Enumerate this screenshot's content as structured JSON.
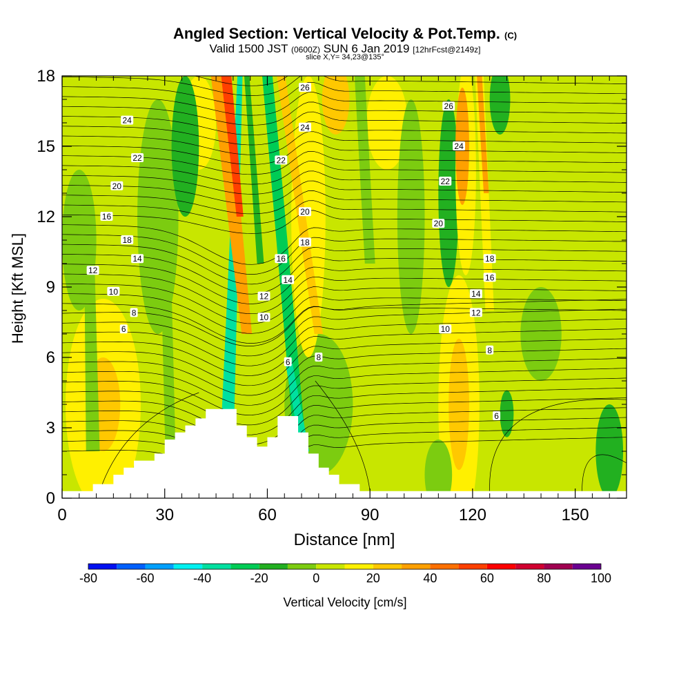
{
  "header": {
    "title": "Angled Section: Vertical Velocity & Pot.Temp.",
    "title_unit": "(C)",
    "valid_prefix": "Valid 1500 JST",
    "valid_utc": "(0600Z)",
    "valid_date": "SUN 6 Jan 2019",
    "forecast": "[12hrFcst@2149z]",
    "slice": "slice X,Y= 34,23@135°"
  },
  "chart_data": {
    "type": "heatmap",
    "xlabel": "Distance [nm]",
    "ylabel": "Height [Kft MSL]",
    "xlim": [
      0,
      165
    ],
    "ylim": [
      0,
      18
    ],
    "x_ticks": [
      0,
      30,
      60,
      90,
      120,
      150
    ],
    "y_ticks": [
      0,
      3,
      6,
      9,
      12,
      15,
      18
    ],
    "grid": false,
    "colorbar": {
      "label": "Vertical Velocity [cm/s]",
      "placement": "bottom",
      "tick_labels": [
        "-80",
        "-60",
        "-40",
        "-20",
        "0",
        "20",
        "40",
        "60",
        "80",
        "100"
      ],
      "bins": [
        -80,
        -70,
        -60,
        -50,
        -40,
        -30,
        -20,
        -10,
        0,
        10,
        20,
        30,
        40,
        50,
        60,
        70,
        80,
        90,
        100
      ],
      "colors": [
        "#0010f0",
        "#0060ff",
        "#00a0ff",
        "#00f0f0",
        "#00e0a0",
        "#00cc55",
        "#22b020",
        "#7ccc10",
        "#c8e600",
        "#fff000",
        "#ffc800",
        "#ffa000",
        "#ff7000",
        "#ff4000",
        "#ff0000",
        "#d00030",
        "#a00050",
        "#6a0090"
      ]
    },
    "background_value": 5,
    "velocity_features": [
      {
        "x": 12,
        "y": 4,
        "rx": 11,
        "ry": 4.5,
        "value": 16
      },
      {
        "x": 12,
        "y": 4,
        "rx": 5,
        "ry": 2,
        "value": 24
      },
      {
        "x": 5,
        "y": 11,
        "rx": 5,
        "ry": 3,
        "value": -3
      },
      {
        "x": 28,
        "y": 12,
        "rx": 6,
        "ry": 5,
        "value": -3
      },
      {
        "x": 40,
        "y": 16,
        "rx": 5,
        "ry": 2,
        "value": 14
      },
      {
        "x": 36,
        "y": 15,
        "rx": 4,
        "ry": 3,
        "value": -15
      },
      {
        "x": 75,
        "y": 4,
        "rx": 10,
        "ry": 3,
        "value": -8
      },
      {
        "x": 72,
        "y": 12,
        "rx": 5,
        "ry": 6,
        "value": 14
      },
      {
        "x": 80,
        "y": 17,
        "rx": 4,
        "ry": 1.5,
        "value": 20
      },
      {
        "x": 95,
        "y": 16,
        "rx": 6,
        "ry": 2,
        "value": 12
      },
      {
        "x": 102,
        "y": 12,
        "rx": 4,
        "ry": 5,
        "value": -4
      },
      {
        "x": 113,
        "y": 13,
        "rx": 3,
        "ry": 4,
        "value": -12
      },
      {
        "x": 118,
        "y": 14,
        "rx": 3,
        "ry": 4.5,
        "value": 18
      },
      {
        "x": 117,
        "y": 15,
        "rx": 2,
        "ry": 2.5,
        "value": 32
      },
      {
        "x": 116,
        "y": 4,
        "rx": 6,
        "ry": 5.5,
        "value": 12
      },
      {
        "x": 116,
        "y": 4,
        "rx": 3,
        "ry": 2.8,
        "value": 26
      },
      {
        "x": 128,
        "y": 17,
        "rx": 3,
        "ry": 1.5,
        "value": -14
      },
      {
        "x": 140,
        "y": 7,
        "rx": 6,
        "ry": 2,
        "value": -3
      },
      {
        "x": 130,
        "y": 3.6,
        "rx": 2,
        "ry": 1,
        "value": -12
      },
      {
        "x": 145,
        "y": 2,
        "rx": 6,
        "ry": 2,
        "value": 4
      },
      {
        "x": 160,
        "y": 2,
        "rx": 4,
        "ry": 2,
        "value": -12
      },
      {
        "x": 110,
        "y": 1,
        "rx": 4,
        "ry": 1.5,
        "value": -4
      }
    ],
    "velocity_bands": [
      {
        "y_bottom": 1.5,
        "y_top": 18,
        "x_bottom": 48,
        "x_top": 52,
        "w_bottom": 4,
        "w_top": 1.5,
        "value": -38
      },
      {
        "y_bottom": 7,
        "y_top": 18,
        "x_bottom": 54,
        "x_top": 46,
        "w_bottom": 3,
        "w_top": 5,
        "value": 30
      },
      {
        "y_bottom": 12,
        "y_top": 18,
        "x_bottom": 52,
        "x_top": 48,
        "w_bottom": 2,
        "w_top": 3,
        "value": 52
      },
      {
        "y_bottom": 10,
        "y_top": 18,
        "x_bottom": 58,
        "x_top": 54,
        "w_bottom": 2,
        "w_top": 1.5,
        "value": -18
      },
      {
        "y_bottom": 1.5,
        "y_top": 18,
        "x_bottom": 70,
        "x_top": 60,
        "w_bottom": 3.5,
        "w_top": 3,
        "value": -22
      },
      {
        "y_bottom": 2,
        "y_top": 6,
        "x_bottom": 71,
        "x_top": 66,
        "w_bottom": 2.5,
        "w_top": 2,
        "value": -40
      },
      {
        "y_bottom": 7,
        "y_top": 18,
        "x_bottom": 75,
        "x_top": 64,
        "w_bottom": 2.5,
        "w_top": 2.5,
        "value": 26
      },
      {
        "y_bottom": 10,
        "y_top": 18,
        "x_bottom": 90,
        "x_top": 87,
        "w_bottom": 3,
        "w_top": 3,
        "value": -8
      },
      {
        "y_bottom": 8,
        "y_top": 18,
        "x_bottom": 125,
        "x_top": 122,
        "w_bottom": 2.5,
        "w_top": 2.5,
        "value": 18
      },
      {
        "y_bottom": 13,
        "y_top": 18,
        "x_bottom": 124,
        "x_top": 122,
        "w_bottom": 1.5,
        "w_top": 1.5,
        "value": 34
      },
      {
        "y_bottom": 0,
        "y_top": 12,
        "x_bottom": 32,
        "x_top": 30,
        "w_bottom": 3,
        "w_top": 3,
        "value": -6
      },
      {
        "y_bottom": 2,
        "y_top": 10,
        "x_bottom": 9,
        "x_top": 8,
        "w_bottom": 4,
        "w_top": 3,
        "value": -4
      }
    ],
    "terrain": [
      [
        0,
        0.3
      ],
      [
        9,
        0.3
      ],
      [
        9,
        0.6
      ],
      [
        15,
        0.6
      ],
      [
        15,
        1.0
      ],
      [
        18,
        1.0
      ],
      [
        18,
        1.3
      ],
      [
        21,
        1.3
      ],
      [
        21,
        1.6
      ],
      [
        27,
        1.6
      ],
      [
        27,
        1.9
      ],
      [
        30,
        1.9
      ],
      [
        30,
        2.5
      ],
      [
        33,
        2.5
      ],
      [
        33,
        2.8
      ],
      [
        36,
        2.8
      ],
      [
        36,
        3.1
      ],
      [
        39,
        3.1
      ],
      [
        39,
        3.4
      ],
      [
        42,
        3.4
      ],
      [
        42,
        3.8
      ],
      [
        51,
        3.8
      ],
      [
        51,
        3.1
      ],
      [
        54,
        3.1
      ],
      [
        54,
        2.6
      ],
      [
        57,
        2.6
      ],
      [
        57,
        2.2
      ],
      [
        60,
        2.2
      ],
      [
        60,
        2.6
      ],
      [
        63,
        2.6
      ],
      [
        63,
        3.5
      ],
      [
        69,
        3.5
      ],
      [
        69,
        2.8
      ],
      [
        72,
        2.8
      ],
      [
        72,
        1.9
      ],
      [
        75,
        1.9
      ],
      [
        75,
        1.3
      ],
      [
        78,
        1.3
      ],
      [
        78,
        1.0
      ],
      [
        81,
        1.0
      ],
      [
        81,
        0.6
      ],
      [
        87,
        0.6
      ],
      [
        87,
        0.3
      ],
      [
        165,
        0.3
      ]
    ],
    "theta_contour_levels": [
      6,
      8,
      10,
      12,
      14,
      16,
      18,
      20,
      22,
      24,
      26
    ],
    "theta_contour_labels": [
      {
        "text": "26",
        "x": 71,
        "y": 17.5
      },
      {
        "text": "26",
        "x": 113,
        "y": 16.7
      },
      {
        "text": "24",
        "x": 19,
        "y": 16.1
      },
      {
        "text": "24",
        "x": 71,
        "y": 15.8
      },
      {
        "text": "24",
        "x": 116,
        "y": 15.0
      },
      {
        "text": "22",
        "x": 22,
        "y": 14.5
      },
      {
        "text": "22",
        "x": 64,
        "y": 14.4
      },
      {
        "text": "22",
        "x": 112,
        "y": 13.5
      },
      {
        "text": "20",
        "x": 16,
        "y": 13.3
      },
      {
        "text": "20",
        "x": 71,
        "y": 12.2
      },
      {
        "text": "20",
        "x": 110,
        "y": 11.7
      },
      {
        "text": "16",
        "x": 13,
        "y": 12.0
      },
      {
        "text": "18",
        "x": 19,
        "y": 11.0
      },
      {
        "text": "18",
        "x": 71,
        "y": 10.9
      },
      {
        "text": "18",
        "x": 125,
        "y": 10.2
      },
      {
        "text": "14",
        "x": 22,
        "y": 10.2
      },
      {
        "text": "16",
        "x": 64,
        "y": 10.2
      },
      {
        "text": "16",
        "x": 125,
        "y": 9.4
      },
      {
        "text": "12",
        "x": 9,
        "y": 9.7
      },
      {
        "text": "14",
        "x": 66,
        "y": 9.3
      },
      {
        "text": "14",
        "x": 121,
        "y": 8.7
      },
      {
        "text": "10",
        "x": 15,
        "y": 8.8
      },
      {
        "text": "12",
        "x": 59,
        "y": 8.6
      },
      {
        "text": "12",
        "x": 121,
        "y": 7.9
      },
      {
        "text": "8",
        "x": 21,
        "y": 7.9
      },
      {
        "text": "10",
        "x": 59,
        "y": 7.7
      },
      {
        "text": "10",
        "x": 112,
        "y": 7.2
      },
      {
        "text": "6",
        "x": 18,
        "y": 7.2
      },
      {
        "text": "8",
        "x": 75,
        "y": 6.0
      },
      {
        "text": "8",
        "x": 125,
        "y": 6.3
      },
      {
        "text": "6",
        "x": 66,
        "y": 5.8
      },
      {
        "text": "6",
        "x": 127,
        "y": 3.5
      }
    ]
  }
}
